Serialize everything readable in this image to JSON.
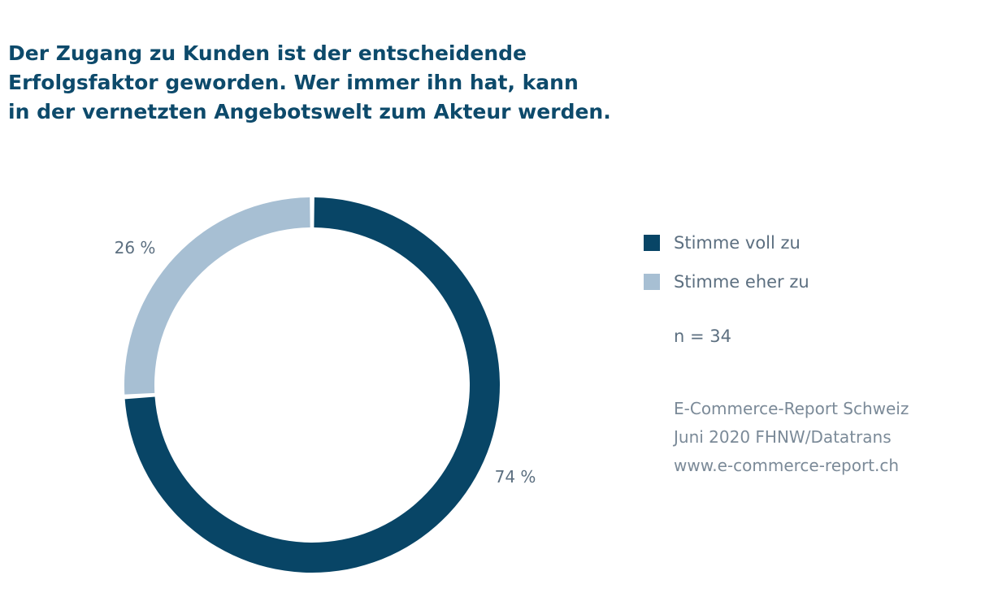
{
  "title_lines": [
    "Der Zugang zu Kunden ist der entscheidende",
    "Erfolgsfaktor geworden. Wer immer ihn hat, kann",
    "in der vernetzten Angebotswelt zum Akteur werden."
  ],
  "legend": [
    {
      "label": "Stimme voll zu",
      "color": "#084566"
    },
    {
      "label": "Stimme eher zu",
      "color": "#a7bfd3"
    }
  ],
  "n_label": "n = 34",
  "source_lines": [
    "E-Commerce-Report Schweiz",
    "Juni 2020 FHNW/Datatrans",
    "www.e-commerce-report.ch"
  ],
  "chart_data": {
    "type": "pie",
    "donut": true,
    "slices": [
      {
        "name": "Stimme voll zu",
        "value": 74,
        "label": "74 %",
        "color": "#084566"
      },
      {
        "name": "Stimme eher zu",
        "value": 26,
        "label": "26 %",
        "color": "#a7bfd3"
      }
    ]
  }
}
